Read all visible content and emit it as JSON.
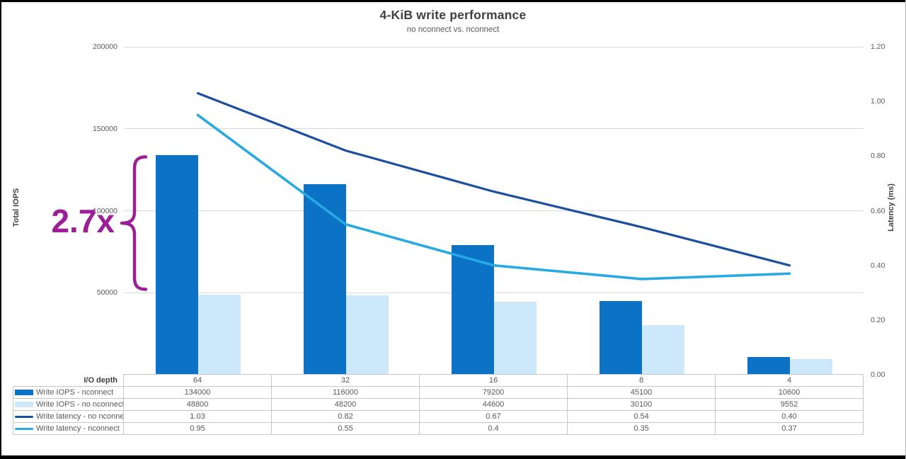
{
  "title": "4-KiB write performance",
  "subtitle": "no nconnect vs. nconnect",
  "annotation": {
    "label": "2.7x",
    "color": "#9c1f98"
  },
  "axes": {
    "left_label": "Total IOPS",
    "right_label": "Latency (ms)",
    "left_ticks": [
      "200000",
      "150000",
      "100000",
      "50000"
    ],
    "right_ticks": [
      "1.20",
      "1.00",
      "0.80",
      "0.60",
      "0.40",
      "0.20",
      "0.00"
    ]
  },
  "table": {
    "corner_label": "I/O depth"
  },
  "chart_data": {
    "type": "bar",
    "subtype": "combo-bar-line-dual-axis",
    "title": "4-KiB write performance",
    "subtitle": "no nconnect vs. nconnect",
    "xlabel": "I/O depth",
    "ylabel_left": "Total IOPS",
    "ylabel_right": "Latency (ms)",
    "ylim_left": [
      0,
      200000
    ],
    "ylim_right": [
      0,
      1.2
    ],
    "grid": true,
    "legend_position": "table-left",
    "categories": [
      "64",
      "32",
      "16",
      "8",
      "4"
    ],
    "series": [
      {
        "name": "Write IOPS - nconnect",
        "kind": "bar",
        "axis": "left",
        "color": "#0b72c6",
        "values": [
          134000,
          116000,
          79200,
          45100,
          10600
        ],
        "values_display": [
          "134000",
          "116000",
          "79200",
          "45100",
          "10600"
        ]
      },
      {
        "name": "Write IOPS - no nconnect",
        "kind": "bar",
        "axis": "left",
        "color": "#cde8f8",
        "values": [
          48800,
          48200,
          44600,
          30100,
          9552
        ],
        "values_display": [
          "48800",
          "48200",
          "44600",
          "30100",
          "9552"
        ]
      },
      {
        "name": "Write latency - no nconnect",
        "kind": "line",
        "axis": "right",
        "color": "#1c4f9e",
        "stroke_width": 3.2,
        "values": [
          1.03,
          0.82,
          0.67,
          0.54,
          0.4
        ],
        "values_display": [
          "1.03",
          "0.82",
          "0.67",
          "0.54",
          "0.40"
        ]
      },
      {
        "name": "Write latency - nconnect",
        "kind": "line",
        "axis": "right",
        "color": "#27a9e1",
        "stroke_width": 3.6,
        "values": [
          0.95,
          0.55,
          0.4,
          0.35,
          0.37
        ],
        "values_display": [
          "0.95",
          "0.55",
          "0.4",
          "0.35",
          "0.37"
        ]
      }
    ]
  }
}
